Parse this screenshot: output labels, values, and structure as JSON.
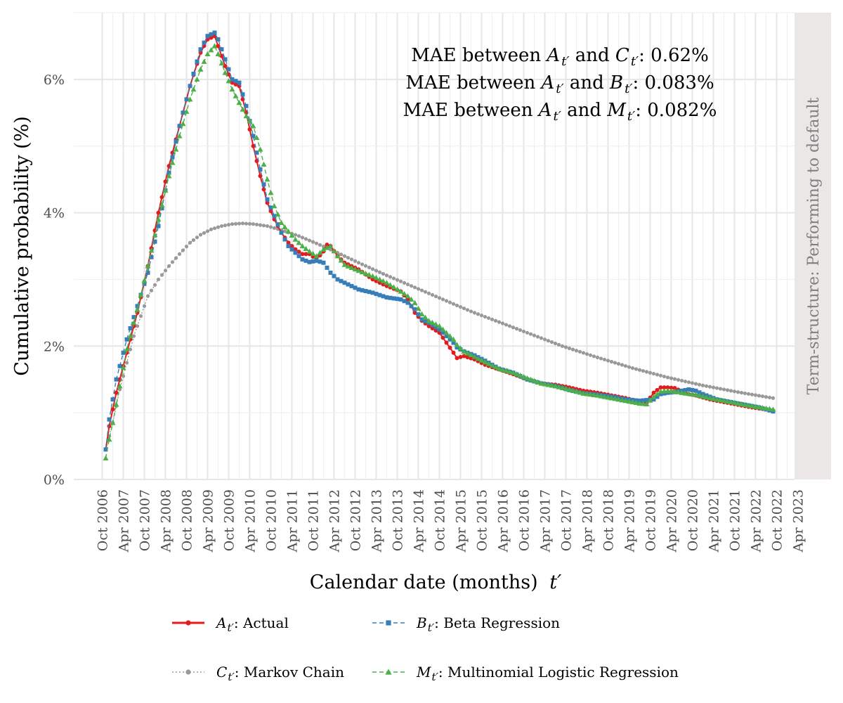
{
  "chart_data": {
    "type": "line",
    "xlabel": "Calendar date (months)",
    "xlabel_symbol": "t′",
    "ylabel": "Cumulative probability (%)",
    "ylim": [
      0,
      7
    ],
    "yticks": [
      0,
      2,
      4,
      6
    ],
    "ytick_labels": [
      "0%",
      "2%",
      "4%",
      "6%"
    ],
    "xlim": [
      "2006-07",
      "2023-07"
    ],
    "xtick_labels": [
      "Oct 2006",
      "Apr 2007",
      "Oct 2007",
      "Apr 2008",
      "Oct 2008",
      "Apr 2009",
      "Oct 2009",
      "Apr 2010",
      "Oct 2010",
      "Apr 2011",
      "Oct 2011",
      "Apr 2012",
      "Oct 2012",
      "Apr 2013",
      "Oct 2013",
      "Apr 2014",
      "Oct 2014",
      "Apr 2015",
      "Oct 2015",
      "Apr 2016",
      "Oct 2016",
      "Apr 2017",
      "Oct 2017",
      "Apr 2018",
      "Oct 2018",
      "Apr 2019",
      "Oct 2019",
      "Apr 2020",
      "Oct 2020",
      "Apr 2021",
      "Oct 2021",
      "Apr 2022",
      "Oct 2022",
      "Apr 2023"
    ],
    "facet_label": "Term-structure: Performing to default",
    "annotations": [
      {
        "prefix": "MAE between ",
        "a": "A",
        "mid": " and ",
        "b": "C",
        "value": ": 0.62%"
      },
      {
        "prefix": "MAE between ",
        "a": "A",
        "mid": " and ",
        "b": "B",
        "value": ": 0.083%"
      },
      {
        "prefix": "MAE between ",
        "a": "A",
        "mid": " and ",
        "b": "M",
        "value": ": 0.082%"
      }
    ],
    "series": [
      {
        "key": "A",
        "name": ": Actual",
        "color": "#e41a1c",
        "marker": "circle",
        "dash": "solid",
        "anchors": [
          [
            0,
            0.45
          ],
          [
            1,
            0.8
          ],
          [
            3,
            1.3
          ],
          [
            6,
            1.9
          ],
          [
            9,
            2.5
          ],
          [
            12,
            3.2
          ],
          [
            15,
            4.0
          ],
          [
            18,
            4.7
          ],
          [
            21,
            5.3
          ],
          [
            24,
            5.9
          ],
          [
            27,
            6.4
          ],
          [
            29,
            6.6
          ],
          [
            31,
            6.65
          ],
          [
            32,
            6.5
          ],
          [
            34,
            6.2
          ],
          [
            36,
            5.95
          ],
          [
            38,
            5.9
          ],
          [
            40,
            5.5
          ],
          [
            42,
            5.0
          ],
          [
            44,
            4.55
          ],
          [
            46,
            4.15
          ],
          [
            48,
            3.9
          ],
          [
            50,
            3.7
          ],
          [
            52,
            3.55
          ],
          [
            54,
            3.45
          ],
          [
            56,
            3.38
          ],
          [
            58,
            3.38
          ],
          [
            60,
            3.3
          ],
          [
            62,
            3.42
          ],
          [
            63,
            3.52
          ],
          [
            64,
            3.5
          ],
          [
            66,
            3.35
          ],
          [
            68,
            3.25
          ],
          [
            72,
            3.15
          ],
          [
            76,
            3.0
          ],
          [
            80,
            2.9
          ],
          [
            84,
            2.82
          ],
          [
            86,
            2.7
          ],
          [
            88,
            2.5
          ],
          [
            90,
            2.38
          ],
          [
            92,
            2.3
          ],
          [
            95,
            2.2
          ],
          [
            97,
            2.05
          ],
          [
            99,
            1.9
          ],
          [
            100,
            1.82
          ],
          [
            102,
            1.85
          ],
          [
            105,
            1.8
          ],
          [
            108,
            1.72
          ],
          [
            112,
            1.65
          ],
          [
            116,
            1.58
          ],
          [
            120,
            1.5
          ],
          [
            124,
            1.44
          ],
          [
            128,
            1.42
          ],
          [
            132,
            1.38
          ],
          [
            136,
            1.33
          ],
          [
            140,
            1.3
          ],
          [
            144,
            1.26
          ],
          [
            148,
            1.22
          ],
          [
            151,
            1.18
          ],
          [
            154,
            1.15
          ],
          [
            156,
            1.3
          ],
          [
            158,
            1.38
          ],
          [
            160,
            1.38
          ],
          [
            162,
            1.37
          ],
          [
            164,
            1.32
          ],
          [
            166,
            1.28
          ],
          [
            168,
            1.26
          ],
          [
            172,
            1.2
          ],
          [
            176,
            1.16
          ],
          [
            180,
            1.12
          ],
          [
            184,
            1.08
          ],
          [
            188,
            1.05
          ],
          [
            190,
            1.03
          ]
        ]
      },
      {
        "key": "B",
        "name": ": Beta Regression",
        "color": "#377eb8",
        "marker": "square",
        "dash": "dashed",
        "anchors": [
          [
            0,
            0.45
          ],
          [
            1,
            0.9
          ],
          [
            3,
            1.5
          ],
          [
            6,
            2.1
          ],
          [
            9,
            2.6
          ],
          [
            12,
            3.1
          ],
          [
            15,
            3.8
          ],
          [
            18,
            4.6
          ],
          [
            21,
            5.3
          ],
          [
            24,
            5.9
          ],
          [
            27,
            6.45
          ],
          [
            29,
            6.65
          ],
          [
            31,
            6.7
          ],
          [
            32,
            6.6
          ],
          [
            34,
            6.3
          ],
          [
            36,
            6.0
          ],
          [
            38,
            5.95
          ],
          [
            40,
            5.6
          ],
          [
            42,
            5.15
          ],
          [
            44,
            4.65
          ],
          [
            46,
            4.2
          ],
          [
            48,
            3.95
          ],
          [
            50,
            3.7
          ],
          [
            52,
            3.5
          ],
          [
            54,
            3.4
          ],
          [
            56,
            3.3
          ],
          [
            58,
            3.26
          ],
          [
            60,
            3.28
          ],
          [
            62,
            3.25
          ],
          [
            64,
            3.1
          ],
          [
            66,
            3.0
          ],
          [
            68,
            2.95
          ],
          [
            70,
            2.9
          ],
          [
            72,
            2.85
          ],
          [
            76,
            2.8
          ],
          [
            80,
            2.73
          ],
          [
            84,
            2.7
          ],
          [
            86,
            2.65
          ],
          [
            88,
            2.55
          ],
          [
            90,
            2.4
          ],
          [
            92,
            2.35
          ],
          [
            95,
            2.25
          ],
          [
            97,
            2.15
          ],
          [
            99,
            2.05
          ],
          [
            100,
            1.98
          ],
          [
            102,
            1.92
          ],
          [
            105,
            1.86
          ],
          [
            108,
            1.78
          ],
          [
            112,
            1.66
          ],
          [
            116,
            1.6
          ],
          [
            120,
            1.5
          ],
          [
            124,
            1.44
          ],
          [
            128,
            1.4
          ],
          [
            132,
            1.34
          ],
          [
            136,
            1.29
          ],
          [
            140,
            1.27
          ],
          [
            144,
            1.24
          ],
          [
            148,
            1.2
          ],
          [
            152,
            1.18
          ],
          [
            156,
            1.2
          ],
          [
            158,
            1.28
          ],
          [
            160,
            1.3
          ],
          [
            162,
            1.31
          ],
          [
            164,
            1.33
          ],
          [
            166,
            1.35
          ],
          [
            168,
            1.33
          ],
          [
            170,
            1.28
          ],
          [
            174,
            1.2
          ],
          [
            178,
            1.16
          ],
          [
            182,
            1.12
          ],
          [
            186,
            1.08
          ],
          [
            190,
            1.02
          ]
        ]
      },
      {
        "key": "C",
        "name": ": Markov Chain",
        "color": "#999999",
        "marker": "circle",
        "dash": "dotted",
        "anchors": [
          [
            0,
            0.45
          ],
          [
            2,
            0.85
          ],
          [
            4,
            1.35
          ],
          [
            6,
            1.75
          ],
          [
            8,
            2.15
          ],
          [
            10,
            2.45
          ],
          [
            12,
            2.75
          ],
          [
            15,
            3.0
          ],
          [
            18,
            3.2
          ],
          [
            21,
            3.38
          ],
          [
            24,
            3.55
          ],
          [
            27,
            3.67
          ],
          [
            30,
            3.75
          ],
          [
            33,
            3.8
          ],
          [
            36,
            3.83
          ],
          [
            39,
            3.84
          ],
          [
            42,
            3.83
          ],
          [
            46,
            3.8
          ],
          [
            50,
            3.74
          ],
          [
            55,
            3.65
          ],
          [
            60,
            3.54
          ],
          [
            66,
            3.4
          ],
          [
            72,
            3.25
          ],
          [
            80,
            3.06
          ],
          [
            88,
            2.88
          ],
          [
            96,
            2.7
          ],
          [
            104,
            2.52
          ],
          [
            112,
            2.36
          ],
          [
            120,
            2.2
          ],
          [
            130,
            2.0
          ],
          [
            140,
            1.83
          ],
          [
            150,
            1.67
          ],
          [
            160,
            1.53
          ],
          [
            170,
            1.41
          ],
          [
            180,
            1.31
          ],
          [
            190,
            1.22
          ]
        ]
      },
      {
        "key": "M",
        "name": ": Multinomial Logistic Regression",
        "color": "#4daf4a",
        "marker": "triangle",
        "dash": "dashed",
        "anchors": [
          [
            0,
            0.32
          ],
          [
            1,
            0.6
          ],
          [
            2,
            0.85
          ],
          [
            4,
            1.4
          ],
          [
            6,
            1.95
          ],
          [
            9,
            2.55
          ],
          [
            12,
            3.2
          ],
          [
            15,
            3.9
          ],
          [
            18,
            4.55
          ],
          [
            21,
            5.15
          ],
          [
            24,
            5.7
          ],
          [
            27,
            6.15
          ],
          [
            29,
            6.38
          ],
          [
            31,
            6.5
          ],
          [
            32,
            6.38
          ],
          [
            34,
            6.1
          ],
          [
            36,
            5.85
          ],
          [
            38,
            5.65
          ],
          [
            40,
            5.45
          ],
          [
            42,
            5.3
          ],
          [
            44,
            4.95
          ],
          [
            46,
            4.5
          ],
          [
            48,
            4.1
          ],
          [
            50,
            3.85
          ],
          [
            52,
            3.72
          ],
          [
            54,
            3.6
          ],
          [
            56,
            3.5
          ],
          [
            58,
            3.42
          ],
          [
            60,
            3.35
          ],
          [
            62,
            3.45
          ],
          [
            64,
            3.5
          ],
          [
            66,
            3.35
          ],
          [
            68,
            3.22
          ],
          [
            72,
            3.13
          ],
          [
            76,
            3.05
          ],
          [
            80,
            2.95
          ],
          [
            84,
            2.82
          ],
          [
            86,
            2.75
          ],
          [
            88,
            2.65
          ],
          [
            90,
            2.48
          ],
          [
            92,
            2.38
          ],
          [
            95,
            2.3
          ],
          [
            97,
            2.2
          ],
          [
            99,
            2.1
          ],
          [
            100,
            2.02
          ],
          [
            102,
            1.92
          ],
          [
            105,
            1.84
          ],
          [
            108,
            1.76
          ],
          [
            112,
            1.66
          ],
          [
            116,
            1.6
          ],
          [
            120,
            1.52
          ],
          [
            124,
            1.44
          ],
          [
            128,
            1.4
          ],
          [
            132,
            1.35
          ],
          [
            136,
            1.29
          ],
          [
            140,
            1.26
          ],
          [
            144,
            1.22
          ],
          [
            148,
            1.18
          ],
          [
            152,
            1.14
          ],
          [
            154,
            1.13
          ],
          [
            156,
            1.24
          ],
          [
            158,
            1.32
          ],
          [
            160,
            1.33
          ],
          [
            162,
            1.32
          ],
          [
            164,
            1.3
          ],
          [
            168,
            1.27
          ],
          [
            172,
            1.22
          ],
          [
            176,
            1.18
          ],
          [
            180,
            1.14
          ],
          [
            184,
            1.1
          ],
          [
            190,
            1.05
          ]
        ]
      }
    ]
  }
}
